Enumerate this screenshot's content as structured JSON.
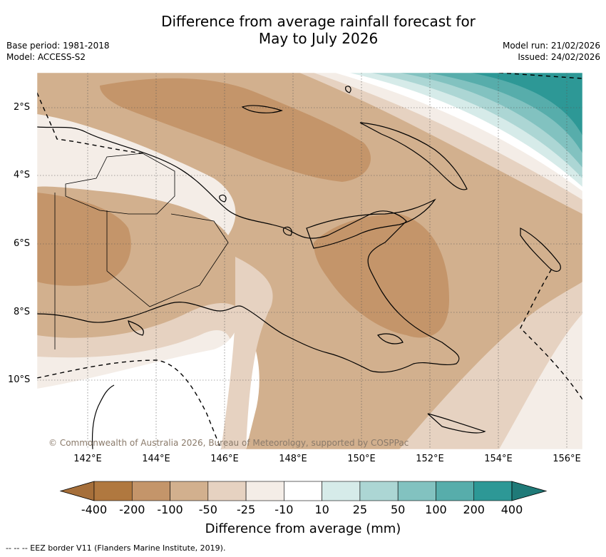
{
  "title": {
    "line1": "Difference from average rainfall forecast for",
    "line2": "May to July 2026"
  },
  "meta": {
    "base_period": "Base period: 1981-2018",
    "model": "Model: ACCESS-S2",
    "model_run": "Model run: 21/02/2026",
    "issued": "Issued: 24/02/2026"
  },
  "map": {
    "latitude_labels": [
      "2°S",
      "4°S",
      "6°S",
      "8°S",
      "10°S"
    ],
    "longitude_labels": [
      "142°E",
      "144°E",
      "146°E",
      "148°E",
      "150°E",
      "152°E",
      "154°E",
      "156°E"
    ],
    "credit": "© Commonwealth of Australia 2026, Bureau of Meteorology, supported by COSPPac",
    "lon_range": [
      140.6,
      156.5
    ],
    "lat_range": [
      -12.0,
      -1.1
    ]
  },
  "legend": {
    "title": "Difference from average (mm)",
    "ticks": [
      "-400",
      "-200",
      "-100",
      "-50",
      "-25",
      "-10",
      "10",
      "25",
      "50",
      "100",
      "200",
      "400"
    ],
    "colors": [
      "#a66f3a",
      "#b0783f",
      "#c4956a",
      "#d2b08e",
      "#e6d2c1",
      "#f4ede7",
      "#ffffff",
      "#d6ebe9",
      "#acd6d4",
      "#82c2c0",
      "#57adab",
      "#2d9896",
      "#1f7a78"
    ]
  },
  "footer": "--  --  -- EEZ border V11 (Flanders Marine Institute, 2019)."
}
